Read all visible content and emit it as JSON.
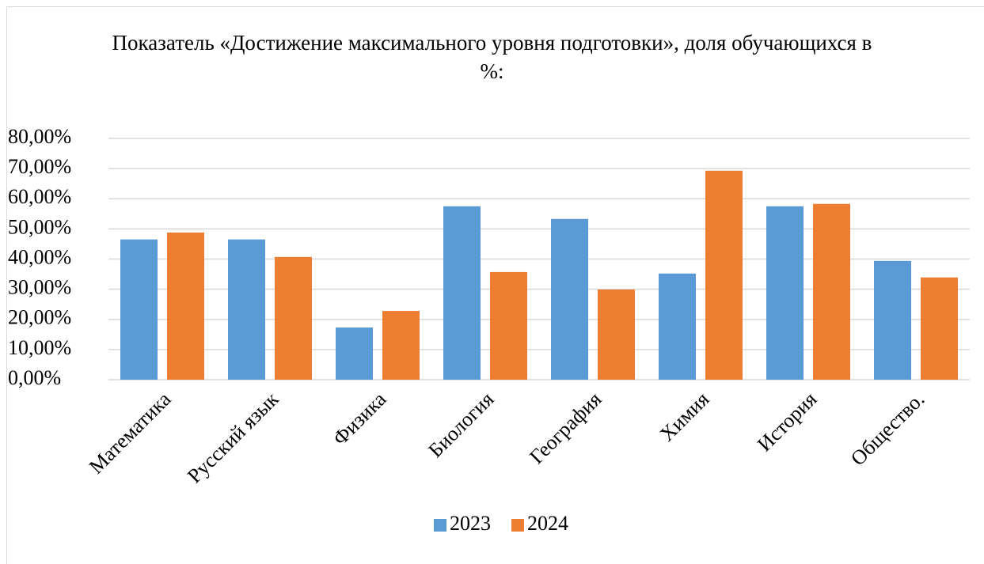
{
  "chart_data": {
    "type": "bar",
    "title": "Показатель «Достижение максимального уровня подготовки», доля обучающихся в %:",
    "categories": [
      "Математика",
      "Русский язык",
      "Физика",
      "Биология",
      "География",
      "Химия",
      "История",
      "Общество."
    ],
    "series": [
      {
        "name": "2023",
        "color": "#5b9bd5",
        "values": [
          46.5,
          46.5,
          17.3,
          57.5,
          53.3,
          35.2,
          57.5,
          39.4
        ]
      },
      {
        "name": "2024",
        "color": "#ed7d31",
        "values": [
          48.8,
          40.7,
          22.8,
          35.7,
          29.9,
          69.3,
          58.3,
          33.9
        ]
      }
    ],
    "ylim": [
      0,
      80
    ],
    "yticks": [
      {
        "value": 0,
        "label": "0,00%"
      },
      {
        "value": 10,
        "label": "10,00%"
      },
      {
        "value": 20,
        "label": "20,00%"
      },
      {
        "value": 30,
        "label": "30,00%"
      },
      {
        "value": 40,
        "label": "40,00%"
      },
      {
        "value": 50,
        "label": "50,00%"
      },
      {
        "value": 60,
        "label": "60,00%"
      },
      {
        "value": 70,
        "label": "70,00%"
      },
      {
        "value": 80,
        "label": "80,00%"
      }
    ],
    "grid": true,
    "legend": "bottom"
  }
}
